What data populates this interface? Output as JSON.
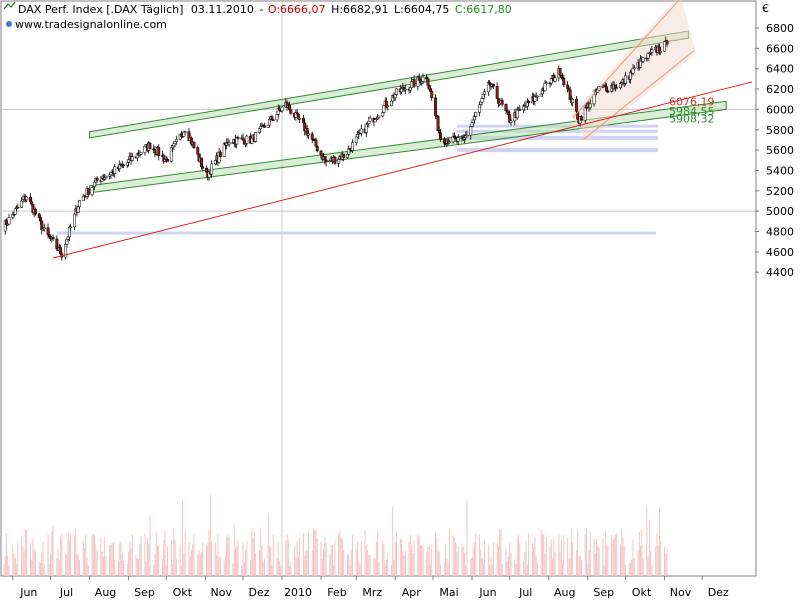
{
  "header": {
    "instrument": "DAX Perf. Index [.DAX  Täglich]",
    "date": "03.11.2010",
    "open": "O:6666,07",
    "high": "H:6682,91",
    "low": "L:6604,75",
    "close": "C:6617,80",
    "source": "www.tradesignalonline.com"
  },
  "colors": {
    "candle_up": "#ffffff",
    "candle_down": "#8b1a1a",
    "channel_fill": "#b9e0b0",
    "channel_line": "#2f8a2f",
    "trend_red": "#e02020",
    "volume": "#f2c4c4",
    "zone_blue": "#c8cdf2",
    "grid": "#c9c9c9",
    "open_label": "#d00000",
    "close_label": "#209020",
    "level_red": "#cc3333",
    "level_green": "#2e8b2e"
  },
  "chart_data": {
    "type": "candlestick",
    "currency_symbol": "€",
    "ylim": [
      4400,
      6900
    ],
    "yticks": [
      "6800",
      "6600",
      "6400",
      "6200",
      "6000",
      "5800",
      "5600",
      "5400",
      "5200",
      "5000",
      "4800",
      "4600",
      "4400"
    ],
    "xtick_labels": [
      "Jun",
      "Jul",
      "Aug",
      "Sep",
      "Okt",
      "Nov",
      "Dez",
      "2010",
      "Feb",
      "Mrz",
      "Apr",
      "Mai",
      "Jun",
      "Jul",
      "Aug",
      "Sep",
      "Okt",
      "Nov",
      "Dez"
    ],
    "price_path": [
      [
        "2009-05-25",
        4850
      ],
      [
        "2009-06-12",
        5150
      ],
      [
        "2009-06-26",
        4800
      ],
      [
        "2009-07-10",
        4580
      ],
      [
        "2009-07-24",
        5100
      ],
      [
        "2009-08-07",
        5300
      ],
      [
        "2009-08-28",
        5450
      ],
      [
        "2009-09-18",
        5650
      ],
      [
        "2009-10-01",
        5500
      ],
      [
        "2009-10-16",
        5820
      ],
      [
        "2009-11-02",
        5350
      ],
      [
        "2009-11-20",
        5700
      ],
      [
        "2009-12-08",
        5700
      ],
      [
        "2010-01-04",
        6050
      ],
      [
        "2010-01-20",
        5800
      ],
      [
        "2010-02-05",
        5480
      ],
      [
        "2010-02-20",
        5550
      ],
      [
        "2010-03-10",
        5850
      ],
      [
        "2010-04-01",
        6150
      ],
      [
        "2010-04-26",
        6330
      ],
      [
        "2010-05-07",
        5720
      ],
      [
        "2010-05-25",
        5680
      ],
      [
        "2010-06-15",
        6250
      ],
      [
        "2010-07-01",
        5900
      ],
      [
        "2010-07-20",
        6100
      ],
      [
        "2010-08-10",
        6380
      ],
      [
        "2010-08-25",
        5900
      ],
      [
        "2010-09-10",
        6200
      ],
      [
        "2010-09-28",
        6250
      ],
      [
        "2010-10-12",
        6450
      ],
      [
        "2010-10-25",
        6580
      ],
      [
        "2010-11-03",
        6640
      ]
    ],
    "channels": [
      {
        "name": "",
        "start": [
          "2009-08-01",
          5780,
          5720
        ],
        "end": [
          "2010-11-20",
          6770,
          6700
        ]
      },
      {
        "name": "",
        "start": [
          "2009-08-01",
          5250,
          5180
        ],
        "end": [
          "2010-12-20",
          6080,
          6000
        ]
      }
    ],
    "trendlines": [
      {
        "color": "red",
        "start": [
          "2009-07-03",
          4540
        ],
        "end": [
          "2010-12-31",
          6270
        ]
      },
      {
        "color": "orange",
        "start": [
          "2010-08-25",
          5700
        ],
        "end": [
          "2010-11-20",
          6880
        ]
      }
    ],
    "support_zones": [
      [
        "2010-05-20",
        5580,
        5620
      ],
      [
        "2010-05-20",
        5700,
        5740
      ],
      [
        "2010-05-20",
        5770,
        5800
      ],
      [
        "2010-05-20",
        5830,
        5850
      ],
      [
        "2009-07-06",
        4770,
        4800
      ]
    ],
    "level_labels": [
      {
        "text": "6076,19",
        "value": 6076.19,
        "color": "red"
      },
      {
        "text": "5984,55",
        "value": 5984.55,
        "color": "green"
      },
      {
        "text": "5908,32",
        "value": 5908.32,
        "color": "green"
      }
    ]
  }
}
